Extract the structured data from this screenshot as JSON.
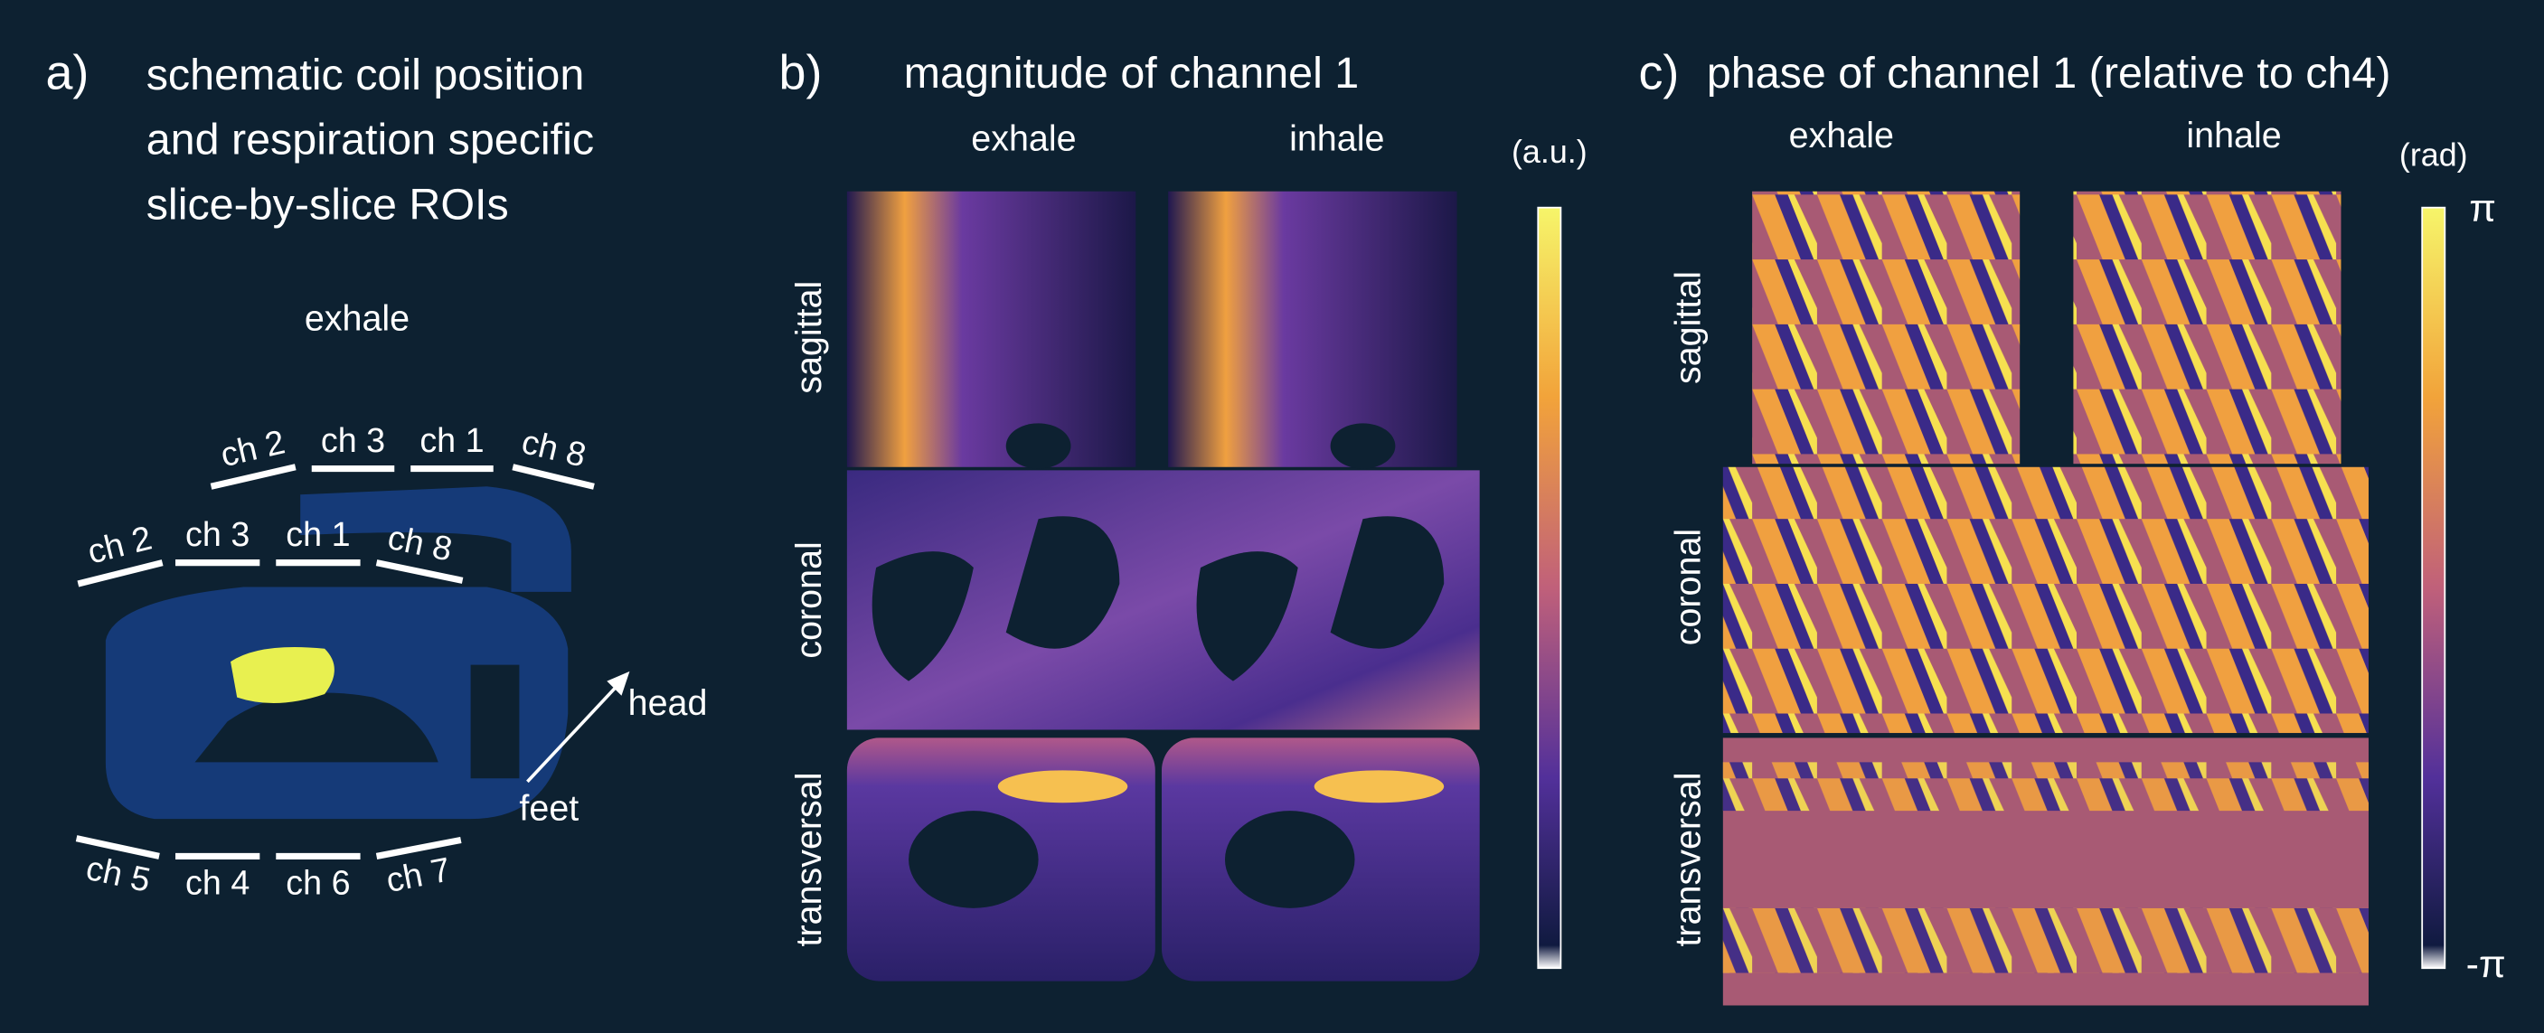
{
  "panels": [
    {
      "label": "a)",
      "title": [
        "schematic coil position",
        "and respiration specific",
        "slice-by-slice ROIs"
      ],
      "subtitle": "exhale",
      "coils": {
        "outer_top": [
          "ch 2",
          "ch 3",
          "ch 1",
          "ch 8"
        ],
        "inner_top": [
          "ch 2",
          "ch 3",
          "ch 1",
          "ch 8"
        ],
        "bottom": [
          "ch 5",
          "ch 4",
          "ch 6",
          "ch 7"
        ]
      },
      "arrow": {
        "head": "head",
        "tail": "feet"
      }
    },
    {
      "label": "b)",
      "title": "magnitude of channel 1",
      "columns": [
        "exhale",
        "inhale"
      ],
      "rows": [
        "sagittal",
        "coronal",
        "transversal"
      ],
      "colorbar": {
        "unit": "(a.u.)"
      }
    },
    {
      "label": "c)",
      "title": "phase of channel 1 (relative to ch4)",
      "columns": [
        "exhale",
        "inhale"
      ],
      "rows": [
        "sagittal",
        "coronal",
        "transversal"
      ],
      "colorbar": {
        "unit": "(rad)",
        "max": "π",
        "min": "-π"
      }
    }
  ]
}
